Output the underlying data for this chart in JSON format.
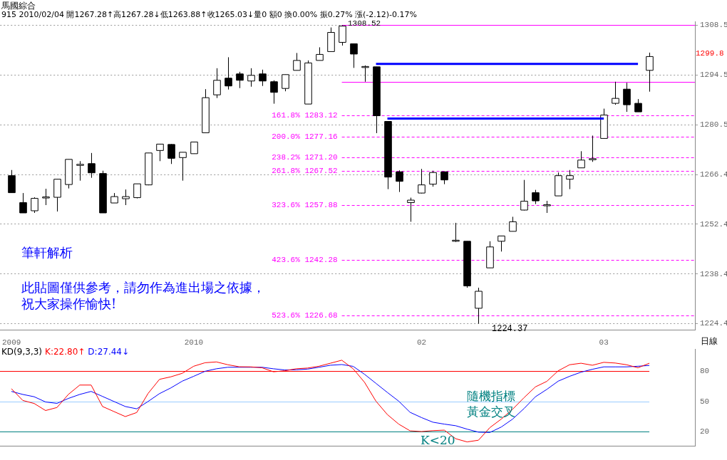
{
  "chart_data": [
    {
      "type": "candlestick",
      "title": "馬國綜合",
      "subtitle": "915 2010/02/04 開1267.28↑高1267.28↓低1263.88↑收1265.03↓量0 額0 換0.00% 振0.27% 漲(-2.12)-0.17%",
      "categories": [
        "2009",
        null,
        null,
        null,
        null,
        null,
        null,
        null,
        null,
        null,
        null,
        null,
        null,
        null,
        null,
        null,
        "2010",
        null,
        null,
        null,
        null,
        null,
        null,
        null,
        null,
        null,
        null,
        null,
        null,
        null,
        null,
        null,
        null,
        null,
        null,
        null,
        "02",
        null,
        null,
        null,
        null,
        null,
        null,
        null,
        null,
        null,
        null,
        null,
        null,
        null,
        null,
        null,
        "03",
        null,
        null,
        null,
        null
      ],
      "ohlc": [
        [
          1266.1,
          1267.7,
          1261.3,
          1261.3
        ],
        [
          1258.5,
          1261.2,
          1255.6,
          1255.6
        ],
        [
          1256.2,
          1260.0,
          1255.6,
          1259.7
        ],
        [
          1260.0,
          1262.4,
          1257.8,
          1260.1
        ],
        [
          1260.0,
          1265.1,
          1256.0,
          1265.1
        ],
        [
          1263.6,
          1270.7,
          1262.5,
          1270.7
        ],
        [
          1269.2,
          1270.2,
          1264.7,
          1269.3
        ],
        [
          1269.5,
          1272.5,
          1265.5,
          1266.9
        ],
        [
          1266.7,
          1267.5,
          1255.6,
          1255.6
        ],
        [
          1258.4,
          1261.2,
          1258.4,
          1260.2
        ],
        [
          1259.6,
          1262.2,
          1257.8,
          1260.2
        ],
        [
          1259.9,
          1263.8,
          1259.7,
          1263.8
        ],
        [
          1263.5,
          1272.5,
          1263.4,
          1272.5
        ],
        [
          1273.2,
          1275.0,
          1270.2,
          1275.0
        ],
        [
          1274.9,
          1275.0,
          1269.4,
          1271.0
        ],
        [
          1271.2,
          1272.7,
          1264.7,
          1272.7
        ],
        [
          1272.3,
          1275.6,
          1272.3,
          1275.6
        ],
        [
          1278.2,
          1290.5,
          1278.2,
          1288.1
        ],
        [
          1288.9,
          1296.4,
          1288.0,
          1293.0
        ],
        [
          1293.6,
          1299.5,
          1290.4,
          1291.4
        ],
        [
          1294.8,
          1295.4,
          1290.8,
          1293.0
        ],
        [
          1292.8,
          1296.4,
          1291.2,
          1294.4
        ],
        [
          1294.8,
          1296.0,
          1291.4,
          1292.8
        ],
        [
          1292.6,
          1293.0,
          1286.4,
          1289.6
        ],
        [
          1290.7,
          1294.6,
          1289.9,
          1294.6
        ],
        [
          1295.8,
          1300.7,
          1295.8,
          1298.6
        ],
        [
          1286.3,
          1298.6,
          1286.3,
          1297.9
        ],
        [
          1298.6,
          1302.3,
          1298.6,
          1300.3
        ],
        [
          1301.1,
          1307.9,
          1301.1,
          1306.5
        ],
        [
          1303.7,
          1308.52,
          1302.8,
          1308.3
        ],
        [
          1303.3,
          1303.3,
          1296.5,
          1300.4
        ],
        [
          1296.9,
          1297.2,
          1292.6,
          1296.9
        ],
        [
          1296.8,
          1296.8,
          1278.1,
          1283.0
        ],
        [
          1281.4,
          1281.4,
          1262.3,
          1265.7
        ],
        [
          1267.2,
          1267.6,
          1261.5,
          1264.5
        ],
        [
          1258.5,
          1259.9,
          1253.1,
          1259.2
        ],
        [
          1261.2,
          1268.0,
          1261.1,
          1263.5
        ],
        [
          1263.7,
          1267.5,
          1263.0,
          1267.0
        ],
        [
          1267.2,
          1267.2,
          1263.7,
          1264.9
        ],
        [
          1247.9,
          1252.8,
          1247.4,
          1247.9
        ],
        [
          1247.6,
          1247.6,
          1234.5,
          1235.0
        ],
        [
          1228.7,
          1234.5,
          1224.37,
          1233.5
        ],
        [
          1240.1,
          1247.6,
          1240.1,
          1246.0
        ],
        [
          1247.6,
          1249.1,
          1244.7,
          1249.1
        ],
        [
          1250.4,
          1254.5,
          1250.4,
          1253.1
        ],
        [
          1256.4,
          1264.9,
          1256.3,
          1258.9
        ],
        [
          1261.3,
          1262.1,
          1258.1,
          1259.0
        ],
        [
          1257.9,
          1259.0,
          1255.6,
          1257.9
        ],
        [
          1260.4,
          1267.0,
          1260.4,
          1266.1
        ],
        [
          1265.1,
          1267.7,
          1262.3,
          1266.1
        ],
        [
          1268.3,
          1273.0,
          1268.3,
          1270.5
        ],
        [
          1270.9,
          1277.4,
          1270.0,
          1270.9
        ],
        [
          1276.6,
          1285.0,
          1276.6,
          1283.2
        ],
        [
          1286.5,
          1292.6,
          1286.1,
          1287.9
        ],
        [
          1290.5,
          1292.3,
          1284.1,
          1286.1
        ],
        [
          1286.5,
          1287.7,
          1284.1,
          1284.1
        ],
        [
          1295.8,
          1300.8,
          1289.8,
          1299.7
        ]
      ],
      "series": [
        {
          "type": "line",
          "color": "#0000ff",
          "values": [
            null,
            null,
            null,
            null,
            null,
            null,
            null,
            null,
            null,
            null,
            null,
            null,
            null,
            null,
            null,
            null,
            null,
            null,
            null,
            null,
            null,
            null,
            null,
            null,
            null,
            null,
            null,
            null,
            null,
            null,
            null,
            null,
            1297.6,
            1297.6,
            1297.6,
            1297.6,
            1297.6,
            1297.6,
            1297.6,
            1297.6,
            1297.6,
            1297.6,
            1297.6,
            1297.6,
            1297.6,
            1297.6,
            1297.6,
            1297.6,
            1297.6,
            1297.6,
            1297.6,
            1297.6,
            1297.6,
            1297.6,
            1297.6,
            1297.6,
            null
          ]
        },
        {
          "type": "line",
          "color": "#0000ff",
          "values": [
            null,
            null,
            null,
            null,
            null,
            null,
            null,
            null,
            null,
            null,
            null,
            null,
            null,
            null,
            null,
            null,
            null,
            null,
            null,
            null,
            null,
            null,
            null,
            null,
            null,
            null,
            null,
            null,
            null,
            null,
            null,
            null,
            null,
            1282.2,
            1282.2,
            1282.2,
            1282.2,
            1282.2,
            1282.2,
            1282.2,
            1282.2,
            1282.2,
            1282.2,
            1282.2,
            1282.2,
            1282.2,
            1282.2,
            1282.2,
            1282.2,
            1282.2,
            1282.2,
            1282.2,
            1282.2,
            null,
            null,
            null,
            null
          ]
        }
      ],
      "ylim": [
        1222.5,
        1309.5
      ],
      "yticks": [
        1224.4,
        1238.4,
        1252.4,
        1266.4,
        1280.5,
        1294.5,
        1308.5
      ],
      "grid": "y",
      "ref_lines": [
        {
          "axis": "y",
          "value": 1308.52,
          "color": "#ff00ff",
          "line_style": "solid"
        },
        {
          "axis": "y",
          "value": 1292.6,
          "color": "#ff00ff",
          "line_style": "solid"
        },
        {
          "axis": "y",
          "value": 1283.12,
          "label": "161.8% 1283.12",
          "color": "#ff00ff",
          "line_style": "dashed"
        },
        {
          "axis": "y",
          "value": 1277.16,
          "label": "200.0% 1277.16",
          "color": "#ff00ff",
          "line_style": "dashed"
        },
        {
          "axis": "y",
          "value": 1271.2,
          "label": "238.2% 1271.20",
          "color": "#ff00ff",
          "line_style": "dashed"
        },
        {
          "axis": "y",
          "value": 1267.52,
          "label": "261.8% 1267.52",
          "color": "#ff00ff",
          "line_style": "dashed"
        },
        {
          "axis": "y",
          "value": 1257.88,
          "label": "323.6% 1257.88",
          "color": "#ff00ff",
          "line_style": "dashed"
        },
        {
          "axis": "y",
          "value": 1242.28,
          "label": "423.6% 1242.28",
          "color": "#ff00ff",
          "line_style": "dashed"
        },
        {
          "axis": "y",
          "value": 1226.68,
          "label": "523.6% 1226.68",
          "color": "#ff00ff",
          "line_style": "dashed"
        }
      ],
      "annotations": [
        "筆軒解析",
        "此貼圖僅供參考，請勿作為進出場之依據，",
        "祝大家操作愉快!",
        "1308.52",
        "1224.37",
        "1299.8"
      ]
    },
    {
      "type": "line",
      "title": "KD(9,3,3)",
      "legend": "top left",
      "tick_labels": "y",
      "categories": [
        "2009",
        null,
        null,
        null,
        null,
        null,
        null,
        null,
        null,
        null,
        null,
        null,
        null,
        null,
        null,
        null,
        "2010",
        null,
        null,
        null,
        null,
        null,
        null,
        null,
        null,
        null,
        null,
        null,
        null,
        null,
        null,
        null,
        null,
        null,
        null,
        null,
        "02",
        null,
        null,
        null,
        null,
        null,
        null,
        null,
        null,
        null,
        null,
        null,
        null,
        null,
        null,
        null,
        "03",
        null,
        null,
        null,
        null
      ],
      "series": [
        {
          "name": "K:22.80↑",
          "color": "#ff0000",
          "values": [
            62.7,
            51,
            48,
            41,
            44,
            57,
            66.3,
            66.3,
            45,
            40,
            35,
            39,
            58,
            72,
            74.5,
            78,
            85,
            88.5,
            89.3,
            86.5,
            84.5,
            84.4,
            83.5,
            79.5,
            80.5,
            82.5,
            83.2,
            85,
            88,
            91,
            82.5,
            69,
            50.3,
            37,
            27.5,
            20.8,
            20.1,
            21,
            21.5,
            13,
            9.8,
            11.5,
            24,
            32.5,
            42.3,
            53.8,
            64.5,
            70,
            80.5,
            86.5,
            88,
            86,
            88.9,
            88.2,
            86.5,
            83.5,
            88
          ]
        },
        {
          "name": "D:27.44↓",
          "color": "#0000ff",
          "values": [
            60,
            57,
            54.7,
            49.5,
            48.1,
            53,
            57,
            60,
            55,
            50,
            45,
            42.7,
            50,
            57.8,
            63.5,
            70.2,
            75,
            80,
            82.5,
            84,
            84,
            84,
            84,
            82.5,
            81.3,
            81.5,
            82.2,
            84,
            86,
            86.7,
            84.9,
            77,
            68,
            59,
            50.3,
            39.2,
            34,
            29.4,
            27.5,
            25.9,
            22.5,
            19.5,
            19.2,
            24.6,
            32.5,
            43,
            54.7,
            62,
            70.2,
            75,
            79.1,
            82,
            84.4,
            84.4,
            84.4,
            85,
            85.8
          ]
        }
      ],
      "ylim": [
        5.7,
        101.8
      ],
      "yticks": [
        20,
        50,
        80
      ],
      "ref_lines": [
        {
          "axis": "y",
          "value": 80,
          "color": "#ff0000",
          "line_style": "solid"
        },
        {
          "axis": "y",
          "value": 50,
          "color": "#99ccff",
          "line_style": "solid"
        },
        {
          "axis": "y",
          "value": 20,
          "color": "#008080",
          "line_style": "solid"
        }
      ],
      "annotations": [
        "隨機指標",
        "黃金交叉",
        "K<20",
        "日線"
      ]
    }
  ]
}
